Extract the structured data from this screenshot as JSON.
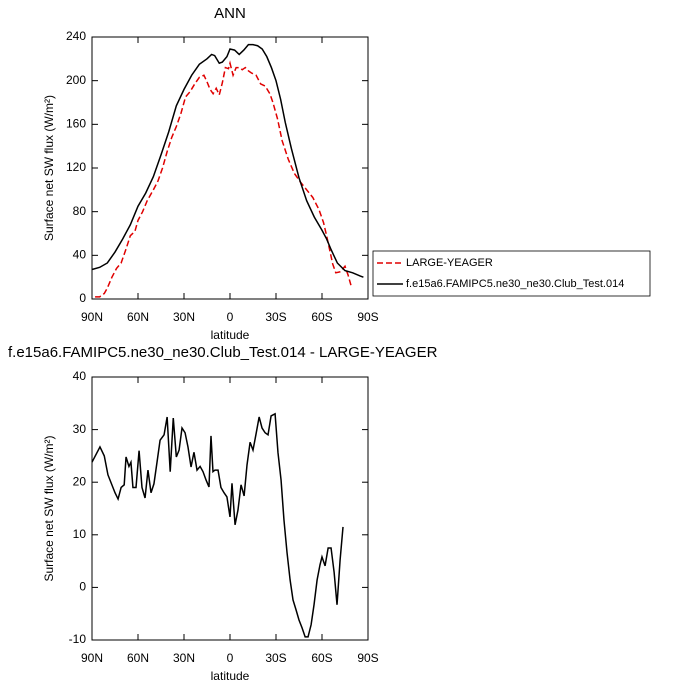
{
  "chart_data": [
    {
      "type": "line",
      "title": "ANN",
      "xlabel": "latitude",
      "ylabel": "Surface net SW flux (W/m²)",
      "xlim": [
        90,
        -90
      ],
      "xticks": [
        {
          "value": 90,
          "label": "90N"
        },
        {
          "value": 60,
          "label": "60N"
        },
        {
          "value": 30,
          "label": "30N"
        },
        0,
        {
          "value": -30,
          "label": "30S"
        },
        {
          "value": -60,
          "label": "60S"
        },
        {
          "value": -90,
          "label": "90S"
        }
      ],
      "ylim": [
        0,
        240
      ],
      "yticks": [
        0,
        40,
        80,
        120,
        160,
        200,
        240
      ],
      "legend": "right",
      "series": [
        {
          "name": "LARGE-YEAGER",
          "color": "#e00000",
          "line_style": "dashed",
          "x": [
            88,
            85,
            82,
            80,
            77,
            74,
            71,
            68,
            65,
            62,
            60,
            57,
            54,
            50,
            47,
            44,
            41,
            38,
            35,
            32,
            29,
            26,
            23,
            20,
            17,
            15,
            13,
            11,
            9,
            7,
            5,
            3,
            1,
            0,
            -2,
            -4,
            -6,
            -8,
            -10,
            -12,
            -14,
            -17,
            -20,
            -23,
            -26,
            -28,
            -31,
            -34,
            -38,
            -42,
            -46,
            -50,
            -54,
            -58,
            -61,
            -63,
            -65,
            -67,
            -69,
            -72,
            -75,
            -77,
            -79
          ],
          "values": [
            2,
            2,
            5,
            10,
            20,
            28,
            33,
            45,
            58,
            62,
            72,
            80,
            90,
            100,
            108,
            120,
            135,
            148,
            158,
            170,
            185,
            190,
            197,
            203,
            205,
            199,
            192,
            188,
            193,
            187,
            198,
            212,
            211,
            216,
            205,
            212,
            212,
            210,
            212,
            209,
            207,
            205,
            197,
            195,
            188,
            180,
            165,
            145,
            128,
            115,
            107,
            100,
            93,
            82,
            70,
            58,
            45,
            32,
            24,
            25,
            30,
            22,
            12
          ]
        },
        {
          "name": "f.e15a6.FAMIPC5.ne30_ne30.Club_Test.014",
          "color": "#000000",
          "line_style": "solid",
          "x": [
            90,
            85,
            80,
            75,
            70,
            65,
            60,
            55,
            50,
            45,
            40,
            35,
            30,
            25,
            20,
            15,
            12,
            10,
            7,
            5,
            2,
            0,
            -3,
            -6,
            -9,
            -12,
            -15,
            -18,
            -21,
            -24,
            -27,
            -30,
            -33,
            -36,
            -40,
            -45,
            -50,
            -55,
            -60,
            -63,
            -66,
            -70,
            -75,
            -80,
            -85,
            -87
          ],
          "values": [
            27,
            29,
            33,
            43,
            55,
            68,
            85,
            97,
            112,
            132,
            153,
            177,
            192,
            205,
            215,
            220,
            224,
            223,
            216,
            217,
            222,
            229,
            228,
            224,
            228,
            233,
            233,
            232,
            229,
            222,
            212,
            200,
            183,
            162,
            138,
            111,
            90,
            75,
            63,
            55,
            45,
            33,
            26,
            24,
            21,
            20
          ]
        }
      ]
    },
    {
      "type": "line",
      "title": "f.e15a6.FAMIPC5.ne30_ne30.Club_Test.014 - LARGE-YEAGER",
      "xlabel": "latitude",
      "ylabel": "Surface net SW flux (W/m²)",
      "xlim": [
        90,
        -90
      ],
      "xticks": [
        {
          "value": 90,
          "label": "90N"
        },
        {
          "value": 60,
          "label": "60N"
        },
        {
          "value": 30,
          "label": "30N"
        },
        0,
        {
          "value": -30,
          "label": "30S"
        },
        {
          "value": -60,
          "label": "60S"
        },
        {
          "value": -90,
          "label": "90S"
        }
      ],
      "ylim": [
        -10,
        40
      ],
      "yticks": [
        -10,
        0,
        10,
        20,
        30,
        40
      ],
      "color": "#000000",
      "x": [
        90,
        84.8,
        82,
        79.6,
        75,
        73,
        71,
        69,
        67.8,
        65.9,
        64.6,
        63.3,
        61.3,
        59.3,
        57.4,
        55.4,
        53.5,
        51.5,
        49.6,
        47.6,
        45.6,
        43,
        41,
        39,
        37,
        35,
        33.2,
        31.3,
        29.3,
        27.4,
        25.4,
        23.5,
        21.5,
        19.5,
        17.6,
        15.6,
        13.7,
        12.4,
        11.1,
        9.8,
        7.8,
        5.9,
        3.9,
        2,
        0,
        -1.3,
        -3.3,
        -5.2,
        -7.2,
        -9.2,
        -11.1,
        -13.1,
        -15,
        -17,
        -19,
        -20.9,
        -22.9,
        -24.8,
        -26.8,
        -29.4,
        -31.3,
        -33.3,
        -35.2,
        -37.2,
        -39.2,
        -41.1,
        -43.1,
        -45,
        -47,
        -49,
        -50.9,
        -52.9,
        -54.8,
        -56.8,
        -58.7,
        -60,
        -62,
        -64,
        -65.9,
        -67.9,
        -69.8,
        -71.8,
        -73.7
      ],
      "values": [
        23.8,
        26.7,
        25,
        21.4,
        18,
        16.8,
        19,
        19.5,
        24.8,
        23,
        23.8,
        19,
        19,
        26,
        19,
        17,
        22.3,
        18,
        19.7,
        23.8,
        28,
        29,
        32.4,
        22,
        32.2,
        24.8,
        26.1,
        30.3,
        29.4,
        26.7,
        22.9,
        25.7,
        22.3,
        23,
        22,
        20.4,
        19.1,
        28.8,
        22,
        22.3,
        22.3,
        19,
        18,
        17.2,
        13.4,
        19.8,
        11.9,
        14.7,
        19.5,
        17.4,
        23.3,
        27.6,
        26.1,
        29.2,
        32.4,
        30.3,
        29.4,
        29,
        32.6,
        33,
        25.6,
        20.4,
        12.8,
        6.6,
        1.4,
        -2.4,
        -4.3,
        -6.2,
        -7.7,
        -9.4,
        -9.4,
        -7.1,
        -3.3,
        1.4,
        4.3,
        5.8,
        4.1,
        7.5,
        7.5,
        2.9,
        -3.3,
        5.2,
        11.5
      ]
    }
  ]
}
